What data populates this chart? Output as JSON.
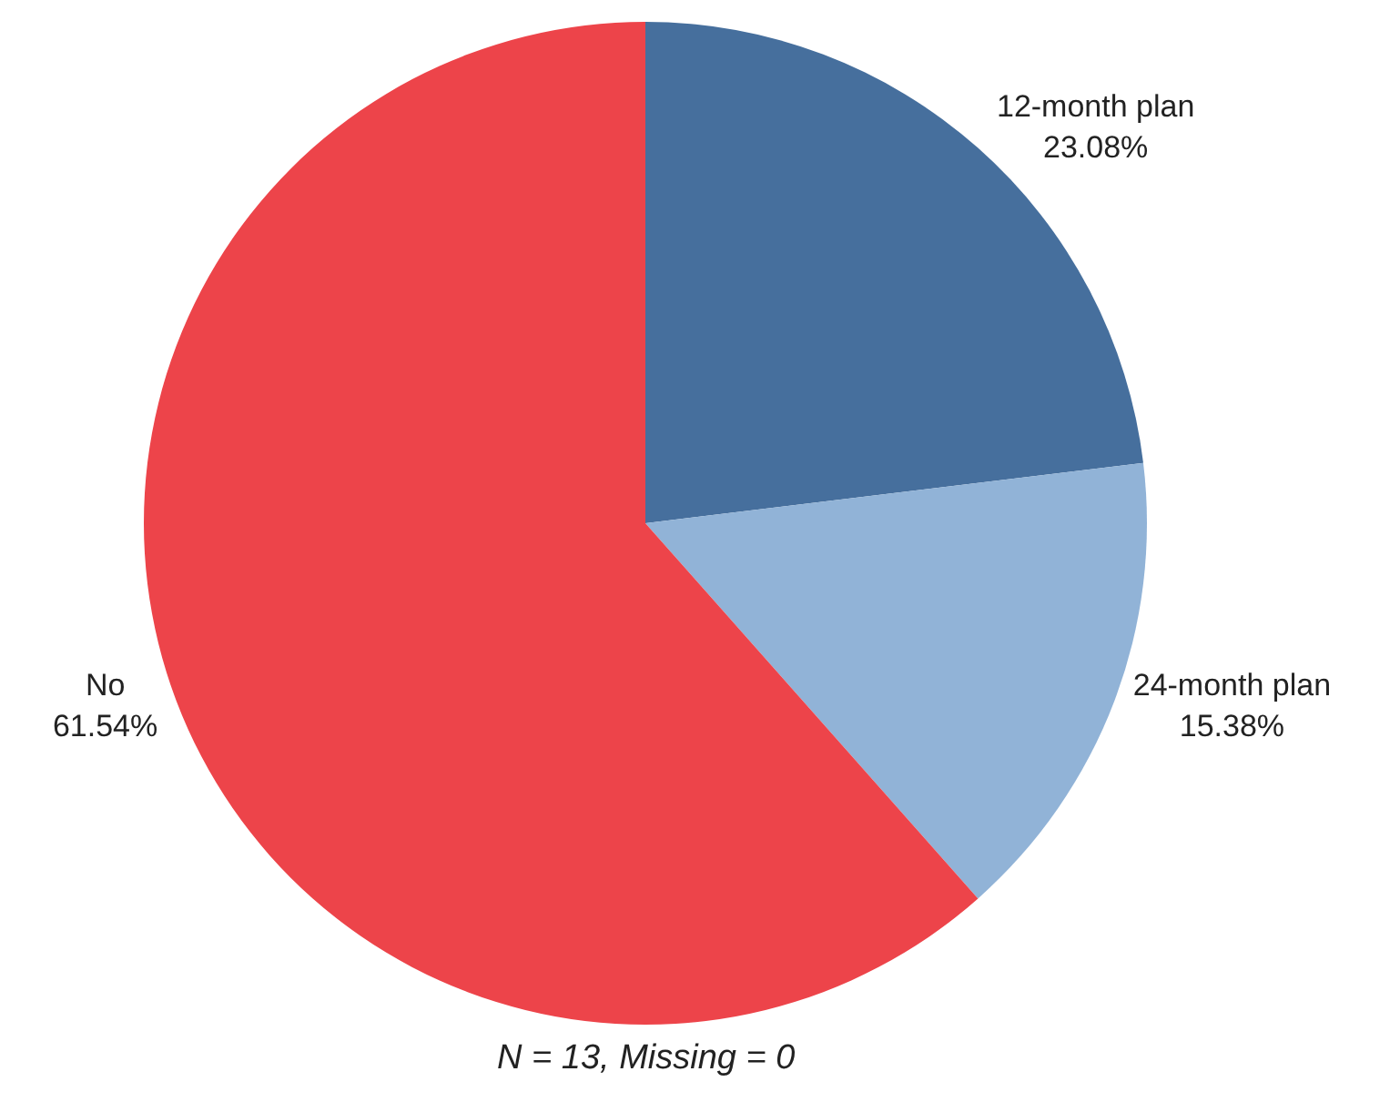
{
  "chart_data": {
    "type": "pie",
    "categories": [
      "12-month plan",
      "24-month plan",
      "No"
    ],
    "values": [
      23.08,
      15.38,
      61.54
    ],
    "value_labels": [
      "23.08%",
      "15.38%",
      "61.54%"
    ],
    "colors": [
      "#466f9d",
      "#91b3d7",
      "#ed444a"
    ],
    "legend": false,
    "annotations": [
      "N = 13, Missing = 0"
    ]
  }
}
